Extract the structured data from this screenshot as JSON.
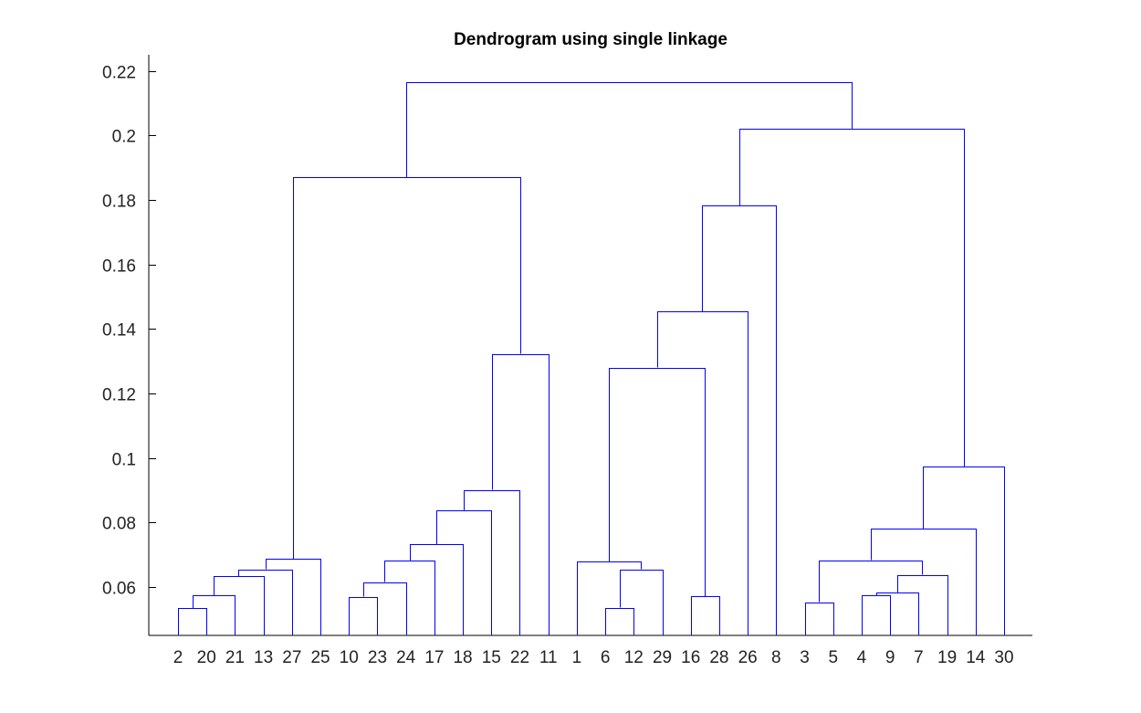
{
  "chart_data": {
    "type": "dendrogram",
    "title": "Dendrogram using single linkage",
    "xlabel": "",
    "ylabel": "",
    "ylim": [
      0.045,
      0.225
    ],
    "y_ticks": [
      0.06,
      0.08,
      0.1,
      0.12,
      0.14,
      0.16,
      0.18,
      0.2,
      0.22
    ],
    "y_tick_labels": [
      "0.06",
      "0.08",
      "0.1",
      "0.12",
      "0.14",
      "0.16",
      "0.18",
      "0.2",
      "0.22"
    ],
    "leaf_order": [
      "2",
      "20",
      "21",
      "13",
      "27",
      "25",
      "10",
      "23",
      "24",
      "17",
      "18",
      "15",
      "22",
      "11",
      "1",
      "6",
      "12",
      "29",
      "16",
      "28",
      "26",
      "8",
      "3",
      "5",
      "4",
      "9",
      "7",
      "19",
      "14",
      "30"
    ],
    "line_color": "#0000ff",
    "merges": [
      {
        "left": "2",
        "right": "20",
        "height": 0.0535
      },
      {
        "left": "2,20",
        "right": "21",
        "height": 0.0575
      },
      {
        "left": "2,20,21",
        "right": "13",
        "height": 0.0633
      },
      {
        "left": "2,20,21,13",
        "right": "27",
        "height": 0.0655
      },
      {
        "left": "2,20,21,13,27",
        "right": "25",
        "height": 0.0688
      },
      {
        "left": "10",
        "right": "23",
        "height": 0.057
      },
      {
        "left": "10,23",
        "right": "24",
        "height": 0.0615
      },
      {
        "left": "10,23,24",
        "right": "17",
        "height": 0.0681
      },
      {
        "left": "10,23,24,17",
        "right": "18",
        "height": 0.0732
      },
      {
        "left": "10,23,24,17,18",
        "right": "15",
        "height": 0.0838
      },
      {
        "left": "10,23,24,17,18,15",
        "right": "22",
        "height": 0.0901
      },
      {
        "left": "10,23,24,17,18,15,22",
        "right": "11",
        "height": 0.1323
      },
      {
        "left": "2,20,21,13,27,25",
        "right": "10,23,24,17,18,15,22,11",
        "height": 0.1871
      },
      {
        "left": "6",
        "right": "12",
        "height": 0.0536
      },
      {
        "left": "6,12",
        "right": "29",
        "height": 0.0655
      },
      {
        "left": "1",
        "right": "6,12,29",
        "height": 0.0679
      },
      {
        "left": "16",
        "right": "28",
        "height": 0.0572
      },
      {
        "left": "1,6,12,29",
        "right": "16,28",
        "height": 0.128
      },
      {
        "left": "1,6,12,29,16,28",
        "right": "26",
        "height": 0.1455
      },
      {
        "left": "1,6,12,29,16,28,26",
        "right": "8",
        "height": 0.1782
      },
      {
        "left": "3",
        "right": "5",
        "height": 0.0553
      },
      {
        "left": "4",
        "right": "9",
        "height": 0.0575
      },
      {
        "left": "4,9",
        "right": "7",
        "height": 0.0582
      },
      {
        "left": "4,9,7",
        "right": "19",
        "height": 0.0638
      },
      {
        "left": "3,5",
        "right": "4,9,7,19",
        "height": 0.0683
      },
      {
        "left": "3,5,4,9,7,19",
        "right": "14",
        "height": 0.0781
      },
      {
        "left": "3,5,4,9,7,19,14",
        "right": "30",
        "height": 0.0973
      },
      {
        "left": "1,6,12,29,16,28,26,8",
        "right": "3,5,4,9,7,19,14,30",
        "height": 0.202
      },
      {
        "left": "2,20,21,13,27,25,10,23,24,17,18,15,22,11",
        "right": "1,6,12,29,16,28,26,8,3,5,4,9,7,19,14,30",
        "height": 0.2166
      }
    ],
    "grid": false,
    "legend": "none"
  }
}
